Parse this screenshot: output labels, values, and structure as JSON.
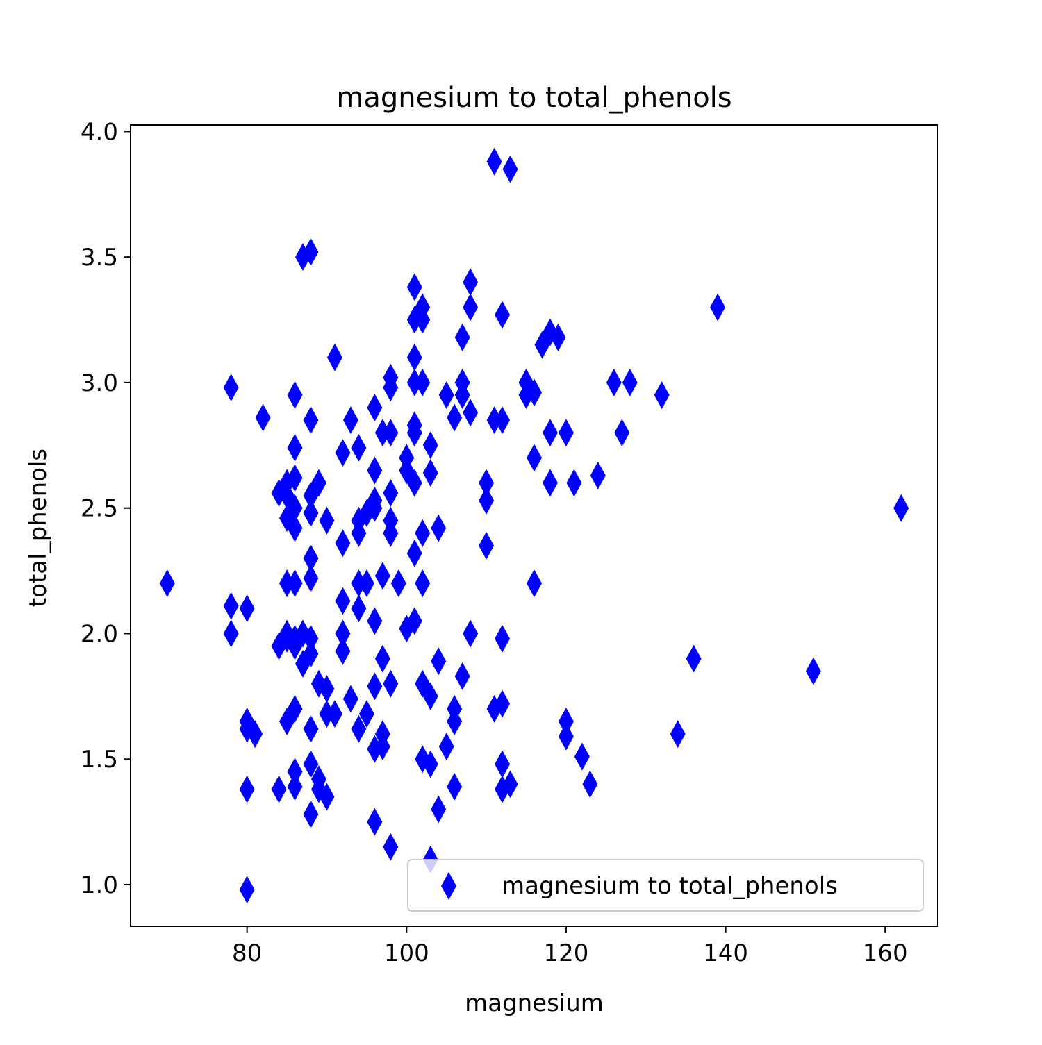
{
  "chart_data": {
    "type": "scatter",
    "title": "magnesium to total_phenols",
    "xlabel": "magnesium",
    "ylabel": "total_phenols",
    "xlim": [
      65.4,
      166.6
    ],
    "ylim": [
      0.834,
      4.026
    ],
    "x_ticks": [
      "80",
      "100",
      "120",
      "140",
      "160"
    ],
    "y_ticks": [
      "1.0",
      "1.5",
      "2.0",
      "2.5",
      "3.0",
      "3.5",
      "4.0"
    ],
    "marker": "thin-diamond",
    "color": "#0000ff",
    "grid": false,
    "legend_position": "lower-right",
    "series": [
      {
        "name": "magnesium to total_phenols",
        "points": [
          [
            70,
            2.2
          ],
          [
            78,
            2.98
          ],
          [
            78,
            2.11
          ],
          [
            78,
            2.0
          ],
          [
            80,
            2.1
          ],
          [
            80,
            1.65
          ],
          [
            80,
            1.62
          ],
          [
            80,
            1.38
          ],
          [
            80,
            0.98
          ],
          [
            81,
            1.6
          ],
          [
            82,
            2.86
          ],
          [
            84,
            2.56
          ],
          [
            84,
            1.95
          ],
          [
            84,
            1.38
          ],
          [
            85,
            2.6
          ],
          [
            85,
            2.55
          ],
          [
            85,
            2.46
          ],
          [
            85,
            2.2
          ],
          [
            85,
            2.0
          ],
          [
            85,
            1.98
          ],
          [
            85,
            1.65
          ],
          [
            86,
            2.95
          ],
          [
            86,
            2.74
          ],
          [
            86,
            2.62
          ],
          [
            86,
            2.5
          ],
          [
            86,
            2.42
          ],
          [
            86,
            2.2
          ],
          [
            86,
            1.98
          ],
          [
            86,
            1.95
          ],
          [
            86,
            1.7
          ],
          [
            86,
            1.45
          ],
          [
            86,
            1.39
          ],
          [
            87,
            3.5
          ],
          [
            87,
            2.0
          ],
          [
            87,
            1.88
          ],
          [
            88,
            3.52
          ],
          [
            88,
            2.85
          ],
          [
            88,
            2.55
          ],
          [
            88,
            2.48
          ],
          [
            88,
            2.3
          ],
          [
            88,
            2.22
          ],
          [
            88,
            1.98
          ],
          [
            88,
            1.92
          ],
          [
            88,
            1.62
          ],
          [
            88,
            1.48
          ],
          [
            88,
            1.28
          ],
          [
            89,
            2.6
          ],
          [
            89,
            1.8
          ],
          [
            89,
            1.42
          ],
          [
            89,
            1.38
          ],
          [
            90,
            2.45
          ],
          [
            90,
            1.78
          ],
          [
            90,
            1.68
          ],
          [
            90,
            1.35
          ],
          [
            91,
            3.1
          ],
          [
            91,
            1.68
          ],
          [
            92,
            2.72
          ],
          [
            92,
            2.36
          ],
          [
            92,
            2.13
          ],
          [
            92,
            2.0
          ],
          [
            92,
            1.93
          ],
          [
            93,
            2.85
          ],
          [
            93,
            1.74
          ],
          [
            94,
            2.74
          ],
          [
            94,
            2.45
          ],
          [
            94,
            2.4
          ],
          [
            94,
            2.2
          ],
          [
            94,
            2.1
          ],
          [
            94,
            1.62
          ],
          [
            95,
            2.48
          ],
          [
            95,
            2.2
          ],
          [
            95,
            1.68
          ],
          [
            96,
            2.9
          ],
          [
            96,
            2.65
          ],
          [
            96,
            2.53
          ],
          [
            96,
            2.5
          ],
          [
            96,
            2.05
          ],
          [
            96,
            1.79
          ],
          [
            96,
            1.54
          ],
          [
            96,
            1.25
          ],
          [
            97,
            2.8
          ],
          [
            97,
            2.23
          ],
          [
            97,
            1.9
          ],
          [
            97,
            1.6
          ],
          [
            97,
            1.55
          ],
          [
            98,
            3.02
          ],
          [
            98,
            2.98
          ],
          [
            98,
            2.8
          ],
          [
            98,
            2.56
          ],
          [
            98,
            2.45
          ],
          [
            98,
            2.4
          ],
          [
            98,
            1.8
          ],
          [
            98,
            1.15
          ],
          [
            99,
            2.2
          ],
          [
            100,
            2.7
          ],
          [
            100,
            2.65
          ],
          [
            100,
            2.02
          ],
          [
            101,
            3.38
          ],
          [
            101,
            3.25
          ],
          [
            101,
            3.1
          ],
          [
            101,
            3.0
          ],
          [
            101,
            2.83
          ],
          [
            101,
            2.8
          ],
          [
            101,
            2.6
          ],
          [
            101,
            2.32
          ],
          [
            101,
            2.05
          ],
          [
            102,
            3.3
          ],
          [
            102,
            3.25
          ],
          [
            102,
            3.0
          ],
          [
            102,
            2.4
          ],
          [
            102,
            2.2
          ],
          [
            102,
            1.8
          ],
          [
            102,
            1.5
          ],
          [
            103,
            2.75
          ],
          [
            103,
            2.64
          ],
          [
            103,
            1.75
          ],
          [
            103,
            1.48
          ],
          [
            103,
            1.1
          ],
          [
            104,
            2.42
          ],
          [
            104,
            1.89
          ],
          [
            104,
            1.3
          ],
          [
            105,
            2.95
          ],
          [
            105,
            1.55
          ],
          [
            106,
            2.86
          ],
          [
            106,
            1.7
          ],
          [
            106,
            1.65
          ],
          [
            106,
            1.39
          ],
          [
            107,
            3.18
          ],
          [
            107,
            3.0
          ],
          [
            107,
            2.95
          ],
          [
            107,
            1.83
          ],
          [
            108,
            3.4
          ],
          [
            108,
            3.3
          ],
          [
            108,
            2.88
          ],
          [
            108,
            2.0
          ],
          [
            110,
            2.6
          ],
          [
            110,
            2.53
          ],
          [
            110,
            2.35
          ],
          [
            111,
            3.88
          ],
          [
            111,
            2.85
          ],
          [
            111,
            1.7
          ],
          [
            112,
            3.27
          ],
          [
            112,
            2.85
          ],
          [
            112,
            1.98
          ],
          [
            112,
            1.72
          ],
          [
            112,
            1.48
          ],
          [
            112,
            1.38
          ],
          [
            113,
            3.85
          ],
          [
            113,
            1.4
          ],
          [
            115,
            3.0
          ],
          [
            115,
            2.95
          ],
          [
            116,
            2.96
          ],
          [
            116,
            2.7
          ],
          [
            116,
            2.2
          ],
          [
            117,
            3.15
          ],
          [
            118,
            3.2
          ],
          [
            118,
            2.8
          ],
          [
            118,
            2.6
          ],
          [
            119,
            3.18
          ],
          [
            120,
            2.8
          ],
          [
            120,
            1.65
          ],
          [
            120,
            1.59
          ],
          [
            121,
            2.6
          ],
          [
            122,
            1.51
          ],
          [
            123,
            1.4
          ],
          [
            124,
            2.63
          ],
          [
            126,
            3.0
          ],
          [
            127,
            2.8
          ],
          [
            128,
            3.0
          ],
          [
            132,
            2.95
          ],
          [
            134,
            1.6
          ],
          [
            136,
            1.9
          ],
          [
            139,
            3.3
          ],
          [
            151,
            1.85
          ],
          [
            162,
            2.5
          ]
        ]
      }
    ]
  }
}
